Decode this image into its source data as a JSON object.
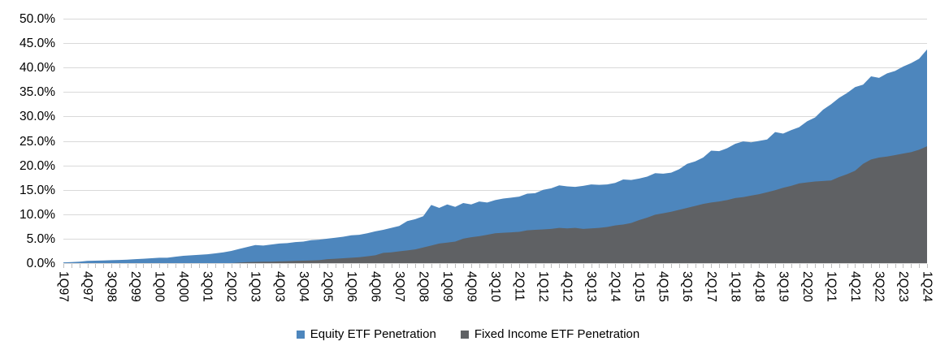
{
  "chart_data": {
    "type": "area",
    "overlapping_series": true,
    "title": "",
    "xlabel": "",
    "ylabel": "",
    "ylim": [
      0,
      50
    ],
    "y_tick_step": 5,
    "y_tick_labels": [
      "0.0%",
      "5.0%",
      "10.0%",
      "15.0%",
      "20.0%",
      "25.0%",
      "30.0%",
      "35.0%",
      "40.0%",
      "45.0%",
      "50.0%"
    ],
    "grid": true,
    "gridline_color": "#d9d9d9",
    "tick_color": "#bfbfbf",
    "axis_text_color": "#000000",
    "x_tick_every": 3,
    "legend_position": "bottom-center",
    "x": [
      "1Q97",
      "2Q97",
      "3Q97",
      "4Q97",
      "1Q98",
      "2Q98",
      "3Q98",
      "4Q98",
      "1Q99",
      "2Q99",
      "3Q99",
      "4Q99",
      "1Q00",
      "2Q00",
      "3Q00",
      "4Q00",
      "1Q01",
      "2Q01",
      "3Q01",
      "4Q01",
      "1Q02",
      "2Q02",
      "3Q02",
      "4Q02",
      "1Q03",
      "2Q03",
      "3Q03",
      "4Q03",
      "1Q04",
      "2Q04",
      "3Q04",
      "4Q04",
      "1Q05",
      "2Q05",
      "3Q05",
      "4Q05",
      "1Q06",
      "2Q06",
      "3Q06",
      "4Q06",
      "1Q07",
      "2Q07",
      "3Q07",
      "4Q07",
      "1Q08",
      "2Q08",
      "3Q08",
      "4Q08",
      "1Q09",
      "2Q09",
      "3Q09",
      "4Q09",
      "1Q10",
      "2Q10",
      "3Q10",
      "4Q10",
      "1Q11",
      "2Q11",
      "3Q11",
      "4Q11",
      "1Q12",
      "2Q12",
      "3Q12",
      "4Q12",
      "1Q13",
      "2Q13",
      "3Q13",
      "4Q13",
      "1Q14",
      "2Q14",
      "3Q14",
      "4Q14",
      "1Q15",
      "2Q15",
      "3Q15",
      "4Q15",
      "1Q16",
      "2Q16",
      "3Q16",
      "4Q16",
      "1Q17",
      "2Q17",
      "3Q17",
      "4Q17",
      "1Q18",
      "2Q18",
      "3Q18",
      "4Q18",
      "1Q19",
      "2Q19",
      "3Q19",
      "4Q19",
      "1Q20",
      "2Q20",
      "3Q20",
      "4Q20",
      "1Q21",
      "2Q21",
      "3Q21",
      "4Q21",
      "1Q22",
      "2Q22",
      "3Q22",
      "4Q22",
      "1Q23",
      "2Q23",
      "3Q23",
      "4Q23",
      "1Q24"
    ],
    "series": [
      {
        "name": "Equity ETF Penetration",
        "color": "#4d86bd",
        "values": [
          0.15,
          0.2,
          0.3,
          0.45,
          0.5,
          0.55,
          0.6,
          0.65,
          0.7,
          0.8,
          0.9,
          1.0,
          1.1,
          1.1,
          1.3,
          1.5,
          1.6,
          1.7,
          1.8,
          2.0,
          2.2,
          2.5,
          2.9,
          3.3,
          3.7,
          3.6,
          3.8,
          4.0,
          4.1,
          4.3,
          4.4,
          4.7,
          4.8,
          5.0,
          5.2,
          5.4,
          5.7,
          5.8,
          6.1,
          6.5,
          6.8,
          7.2,
          7.6,
          8.6,
          9.0,
          9.6,
          11.9,
          11.3,
          12.0,
          11.5,
          12.3,
          12.0,
          12.6,
          12.4,
          12.9,
          13.2,
          13.4,
          13.6,
          14.2,
          14.3,
          15.0,
          15.3,
          15.9,
          15.7,
          15.6,
          15.8,
          16.1,
          16.0,
          16.1,
          16.4,
          17.1,
          17.0,
          17.3,
          17.7,
          18.4,
          18.3,
          18.5,
          19.2,
          20.3,
          20.8,
          21.6,
          23.0,
          22.9,
          23.5,
          24.4,
          24.9,
          24.7,
          25.0,
          25.3,
          26.8,
          26.5,
          27.2,
          27.8,
          29.0,
          29.8,
          31.4,
          32.5,
          33.8,
          34.8,
          36.0,
          36.5,
          38.2,
          37.9,
          38.8,
          39.3,
          40.2,
          40.9,
          41.8,
          43.7
        ]
      },
      {
        "name": "Fixed Income ETF Penetration",
        "color": "#5f6164",
        "values": [
          0,
          0,
          0,
          0,
          0,
          0,
          0,
          0,
          0,
          0,
          0,
          0,
          0,
          0,
          0,
          0,
          0,
          0,
          0,
          0,
          0,
          0,
          0.1,
          0.2,
          0.25,
          0.3,
          0.3,
          0.35,
          0.4,
          0.45,
          0.5,
          0.55,
          0.6,
          0.8,
          0.9,
          1.0,
          1.1,
          1.2,
          1.4,
          1.6,
          2.1,
          2.2,
          2.4,
          2.6,
          2.8,
          3.2,
          3.6,
          4.0,
          4.2,
          4.4,
          5.0,
          5.3,
          5.5,
          5.8,
          6.1,
          6.2,
          6.3,
          6.4,
          6.7,
          6.8,
          6.9,
          7.0,
          7.2,
          7.1,
          7.2,
          7.0,
          7.1,
          7.2,
          7.4,
          7.7,
          7.9,
          8.2,
          8.8,
          9.3,
          9.9,
          10.2,
          10.5,
          10.9,
          11.3,
          11.7,
          12.1,
          12.4,
          12.6,
          12.9,
          13.3,
          13.5,
          13.8,
          14.1,
          14.5,
          14.9,
          15.4,
          15.8,
          16.3,
          16.5,
          16.7,
          16.8,
          16.9,
          17.6,
          18.2,
          18.9,
          20.3,
          21.2,
          21.6,
          21.8,
          22.1,
          22.4,
          22.7,
          23.2,
          23.9
        ]
      }
    ]
  }
}
